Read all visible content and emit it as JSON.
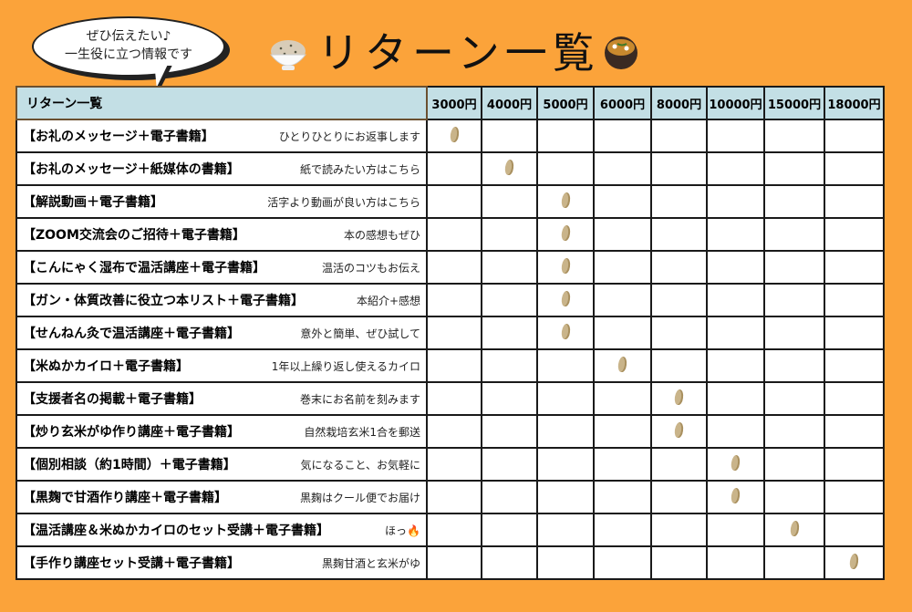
{
  "bubble": {
    "line1": "ぜひ伝えたい♪",
    "line2": "一生役に立つ情報です"
  },
  "title": "リターン一覧",
  "colors": {
    "background": "#fba33a",
    "header": "#c3dfe5",
    "grain": "#c9b48a"
  },
  "table": {
    "corner": "リターン一覧",
    "prices": [
      "3000円",
      "4000円",
      "5000円",
      "6000円",
      "8000円",
      "10000円",
      "15000円",
      "18000円"
    ],
    "rows": [
      {
        "name": "【お礼のメッセージ＋電子書籍】",
        "note": "ひとりひとりにお返事します",
        "price_index": 0
      },
      {
        "name": "【お礼のメッセージ＋紙媒体の書籍】",
        "note": "紙で読みたい方はこちら",
        "price_index": 1
      },
      {
        "name": "【解説動画＋電子書籍】",
        "note": "活字より動画が良い方はこちら",
        "price_index": 2
      },
      {
        "name": "【ZOOM交流会のご招待＋電子書籍】",
        "note": "本の感想もぜひ",
        "price_index": 2
      },
      {
        "name": "【こんにゃく湿布で温活講座＋電子書籍】",
        "note": "温活のコツもお伝え",
        "price_index": 2
      },
      {
        "name": "【ガン・体質改善に役立つ本リスト＋電子書籍】",
        "note": "本紹介+感想",
        "price_index": 2
      },
      {
        "name": "【せんねん灸で温活講座＋電子書籍】",
        "note": "意外と簡単、ぜひ試して",
        "price_index": 2
      },
      {
        "name": "【米ぬかカイロ＋電子書籍】",
        "note": "1年以上繰り返し使えるカイロ",
        "price_index": 3
      },
      {
        "name": "【支援者名の掲載＋電子書籍】",
        "note": "巻末にお名前を刻みます",
        "price_index": 4
      },
      {
        "name": "【炒り玄米がゆ作り講座＋電子書籍】",
        "note": "自然栽培玄米1合を郵送",
        "price_index": 4
      },
      {
        "name": "【個別相談（約1時間）＋電子書籍】",
        "note": "気になること、お気軽に",
        "price_index": 5
      },
      {
        "name": "【黒麹で甘酒作り講座＋電子書籍】",
        "note": "黒麹はクール便でお届け",
        "price_index": 5
      },
      {
        "name": "【温活講座＆米ぬかカイロのセット受講＋電子書籍】",
        "note": "ほっ🔥",
        "price_index": 6
      },
      {
        "name": "【手作り講座セット受講＋電子書籍】",
        "note": "黒麹甘酒と玄米がゆ",
        "price_index": 7
      }
    ]
  }
}
